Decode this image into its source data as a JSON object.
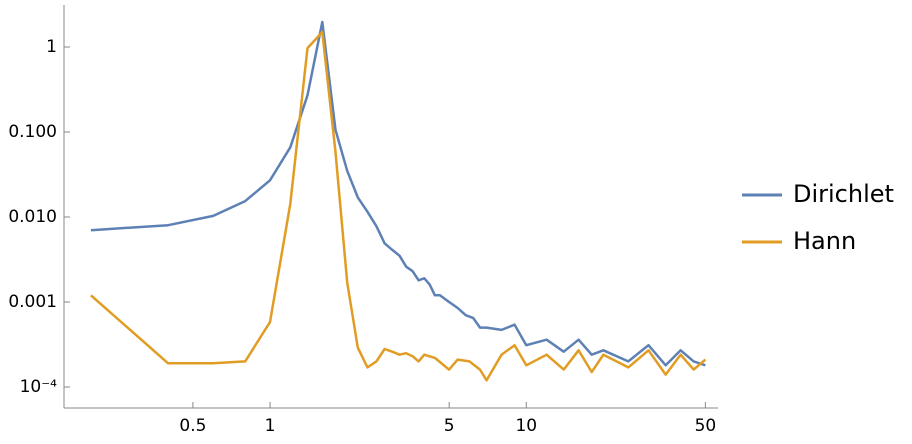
{
  "chart_data": {
    "type": "line",
    "log_x": true,
    "log_y": true,
    "xlim": [
      0.157,
      56
    ],
    "ylim": [
      5.66e-05,
      3.12
    ],
    "xticks": [
      0.5,
      1,
      5,
      10,
      50
    ],
    "yticks": [
      {
        "value": 1,
        "label": "1"
      },
      {
        "value": 0.1,
        "label": "0.100"
      },
      {
        "value": 0.01,
        "label": "0.010"
      },
      {
        "value": 0.001,
        "label": "0.001"
      },
      {
        "value": 0.0001,
        "label": "10⁻⁴"
      }
    ],
    "series": [
      {
        "name": "Dirichlet",
        "color": "#5e81b5",
        "x": [
          0.2,
          0.4,
          0.6,
          0.8,
          1.0,
          1.2,
          1.4,
          1.6,
          1.8,
          2.0,
          2.2,
          2.4,
          2.6,
          2.8,
          3.0,
          3.2,
          3.4,
          3.6,
          3.8,
          4.0,
          4.2,
          4.4,
          4.6,
          5.0,
          5.4,
          5.8,
          6.2,
          6.6,
          7.0,
          8,
          9,
          10,
          12,
          14,
          16,
          18,
          20,
          25,
          30,
          35,
          40,
          45,
          50
        ],
        "values": [
          0.007,
          0.008,
          0.0103,
          0.0154,
          0.027,
          0.066,
          0.27,
          1.97,
          0.106,
          0.035,
          0.017,
          0.0115,
          0.0078,
          0.0049,
          0.0041,
          0.0035,
          0.0026,
          0.0023,
          0.0018,
          0.0019,
          0.0016,
          0.0012,
          0.0012,
          0.001,
          0.00085,
          0.0007,
          0.00065,
          0.0005,
          0.0005,
          0.00047,
          0.00054,
          0.00031,
          0.00036,
          0.00026,
          0.00036,
          0.00024,
          0.00027,
          0.0002,
          0.00031,
          0.00018,
          0.00027,
          0.0002,
          0.00018
        ]
      },
      {
        "name": "Hann",
        "color": "#e19c24",
        "x": [
          0.2,
          0.4,
          0.6,
          0.8,
          1.0,
          1.2,
          1.4,
          1.6,
          1.8,
          2.0,
          2.2,
          2.4,
          2.6,
          2.8,
          3.0,
          3.2,
          3.4,
          3.6,
          3.8,
          4.0,
          4.4,
          5.0,
          5.4,
          6.0,
          6.6,
          7.0,
          8,
          9,
          10,
          12,
          14,
          16,
          18,
          20,
          25,
          30,
          35,
          40,
          45,
          50
        ],
        "values": [
          0.0012,
          0.00019,
          0.00019,
          0.0002,
          0.00058,
          0.0143,
          0.97,
          1.5,
          0.058,
          0.0017,
          0.00029,
          0.00017,
          0.0002,
          0.00028,
          0.00026,
          0.00024,
          0.00025,
          0.00023,
          0.0002,
          0.00024,
          0.00022,
          0.00016,
          0.00021,
          0.0002,
          0.00016,
          0.00012,
          0.00024,
          0.00031,
          0.00018,
          0.00024,
          0.00016,
          0.00027,
          0.00015,
          0.00024,
          0.00017,
          0.00027,
          0.00014,
          0.00024,
          0.00016,
          0.00021
        ]
      }
    ]
  }
}
